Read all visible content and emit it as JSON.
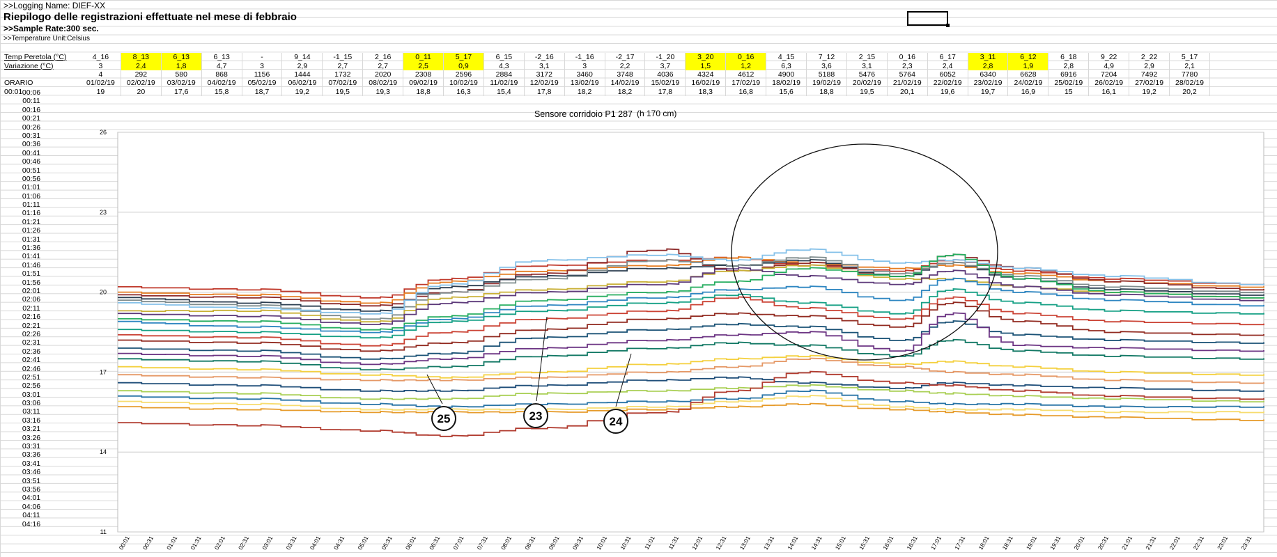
{
  "header": {
    "logging_name": ">>Logging Name: DIEF-XX",
    "title": "Riepilogo delle registrazioni effettuate nel mese di febbraio",
    "sample_rate": ">>Sample Rate:300 sec.",
    "temp_unit": ">>Temperature Unit:Celsius"
  },
  "summary": {
    "row_labels": {
      "ext": "Temp Peretola (°C)",
      "var": "Variazione (°C)",
      "num": "",
      "date": "ORARIO",
      "first": "00:01"
    },
    "ext": [
      "4_16",
      "8_13",
      "6_13",
      "6_13",
      "-",
      "9_14",
      "-1_15",
      "2_16",
      "0_11",
      "5_17",
      "6_15",
      "-2_16",
      "-1_16",
      "-2_17",
      "-1_20",
      "3_20",
      "0_16",
      "4_15",
      "7_12",
      "2_15",
      "0_16",
      "6_17",
      "3_11",
      "6_12",
      "6_18",
      "9_22",
      "2_22",
      "5_17"
    ],
    "var": [
      "3",
      "2,4",
      "1,8",
      "4,7",
      "3",
      "2,9",
      "2,7",
      "2,7",
      "2,5",
      "0,9",
      "4,3",
      "3,1",
      "3",
      "2,2",
      "3,7",
      "1,5",
      "1,2",
      "6,3",
      "3,6",
      "3,1",
      "2,3",
      "2,4",
      "2,8",
      "1,9",
      "2,8",
      "4,9",
      "2,9",
      "2,1"
    ],
    "num": [
      "4",
      "292",
      "580",
      "868",
      "1156",
      "1444",
      "1732",
      "2020",
      "2308",
      "2596",
      "2884",
      "3172",
      "3460",
      "3748",
      "4036",
      "4324",
      "4612",
      "4900",
      "5188",
      "5476",
      "5764",
      "6052",
      "6340",
      "6628",
      "6916",
      "7204",
      "7492",
      "7780"
    ],
    "dates": [
      "01/02/19",
      "02/02/19",
      "03/02/19",
      "04/02/19",
      "05/02/19",
      "06/02/19",
      "07/02/19",
      "08/02/19",
      "09/02/19",
      "10/02/19",
      "11/02/19",
      "12/02/19",
      "13/02/19",
      "14/02/19",
      "15/02/19",
      "16/02/19",
      "17/02/19",
      "18/02/19",
      "19/02/19",
      "20/02/19",
      "21/02/19",
      "22/02/19",
      "23/02/19",
      "24/02/19",
      "25/02/19",
      "26/02/19",
      "27/02/19",
      "28/02/19"
    ],
    "first": [
      "19",
      "20",
      "17,6",
      "15,8",
      "18,7",
      "19,2",
      "19,5",
      "19,3",
      "18,8",
      "16,3",
      "15,4",
      "17,8",
      "18,2",
      "18,2",
      "17,8",
      "18,3",
      "16,8",
      "15,6",
      "18,8",
      "19,5",
      "20,1",
      "19,6",
      "19,7",
      "16,9",
      "15",
      "16,1",
      "19,2",
      "20,2"
    ],
    "highlight": [
      false,
      true,
      true,
      false,
      false,
      false,
      false,
      false,
      true,
      true,
      false,
      false,
      false,
      false,
      false,
      true,
      true,
      false,
      false,
      false,
      false,
      false,
      true,
      true,
      false,
      false,
      false,
      false
    ]
  },
  "times": [
    "00:06",
    "00:11",
    "00:16",
    "00:21",
    "00:26",
    "00:31",
    "00:36",
    "00:41",
    "00:46",
    "00:51",
    "00:56",
    "01:01",
    "01:06",
    "01:11",
    "01:16",
    "01:21",
    "01:26",
    "01:31",
    "01:36",
    "01:41",
    "01:46",
    "01:51",
    "01:56",
    "02:01",
    "02:06",
    "02:11",
    "02:16",
    "02:21",
    "02:26",
    "02:31",
    "02:36",
    "02:41",
    "02:46",
    "02:51",
    "02:56",
    "03:01",
    "03:06",
    "03:11",
    "03:16",
    "03:21",
    "03:26",
    "03:31",
    "03:36",
    "03:41",
    "03:46",
    "03:51",
    "03:56",
    "04:01",
    "04:06",
    "04:11",
    "04:16"
  ],
  "chart_data": {
    "type": "line",
    "title": "Sensore corridoio P1 287",
    "subtitle": "(h 170 cm)",
    "ylim": [
      11,
      26
    ],
    "yticks": [
      "26",
      "23",
      "20",
      "17",
      "14",
      "11"
    ],
    "xticks": [
      "00:01",
      "00:31",
      "01:01",
      "01:31",
      "02:01",
      "02:31",
      "03:01",
      "03:31",
      "04:01",
      "04:31",
      "05:01",
      "05:31",
      "06:01",
      "06:31",
      "07:01",
      "07:31",
      "08:01",
      "08:31",
      "09:01",
      "09:31",
      "10:01",
      "10:31",
      "11:01",
      "11:31",
      "12:01",
      "12:31",
      "13:01",
      "13:31",
      "14:01",
      "14:31",
      "15:01",
      "15:31",
      "16:01",
      "16:31",
      "17:01",
      "17:31",
      "18:01",
      "18:31",
      "19:01",
      "19:31",
      "20:01",
      "20:31",
      "21:01",
      "21:31",
      "22:01",
      "22:31",
      "23:01",
      "23:31"
    ],
    "grid": true,
    "x_hours": [
      0,
      3,
      5.5,
      7,
      9,
      11.5,
      13,
      14.5,
      16.5,
      17.5,
      19,
      21,
      24
    ],
    "series": [
      {
        "color": "#c0392b",
        "values": [
          20.2,
          20.1,
          19.8,
          20.5,
          21.0,
          21.2,
          21.3,
          21.0,
          20.8,
          21.2,
          20.8,
          20.5,
          20.3
        ]
      },
      {
        "color": "#e67e22",
        "values": [
          20.0,
          19.9,
          19.6,
          20.4,
          20.8,
          21.0,
          21.3,
          21.1,
          20.9,
          21.0,
          20.7,
          20.4,
          20.2
        ]
      },
      {
        "color": "#8e2b2b",
        "values": [
          19.9,
          19.8,
          19.5,
          20.0,
          20.7,
          21.6,
          20.8,
          21.1,
          20.6,
          21.4,
          20.9,
          20.4,
          20.1
        ]
      },
      {
        "color": "#2c3e50",
        "values": [
          19.8,
          19.6,
          19.3,
          20.2,
          20.6,
          20.9,
          21.0,
          21.2,
          20.6,
          21.1,
          20.5,
          20.1,
          19.9
        ]
      },
      {
        "color": "#7f8c8d",
        "values": [
          19.7,
          19.5,
          19.0,
          20.0,
          20.5,
          21.2,
          21.0,
          21.3,
          20.7,
          21.1,
          20.6,
          20.2,
          20.0
        ]
      },
      {
        "color": "#85c1e9",
        "values": [
          19.6,
          19.4,
          19.2,
          20.3,
          21.2,
          21.4,
          21.2,
          21.6,
          21.1,
          21.2,
          20.9,
          20.6,
          20.3
        ]
      },
      {
        "color": "#c9b037",
        "values": [
          19.3,
          19.3,
          18.9,
          19.8,
          20.1,
          20.4,
          20.8,
          21.0,
          20.5,
          20.5,
          20.2,
          20.0,
          19.8
        ]
      },
      {
        "color": "#5d3a7a",
        "values": [
          19.2,
          19.1,
          18.8,
          19.6,
          20.0,
          20.3,
          20.9,
          20.6,
          20.3,
          20.8,
          20.2,
          19.9,
          19.7
        ]
      },
      {
        "color": "#27ae60",
        "values": [
          19.0,
          18.9,
          18.6,
          19.1,
          19.7,
          20.0,
          20.4,
          20.9,
          20.6,
          21.4,
          20.5,
          20.0,
          19.8
        ]
      },
      {
        "color": "#2e86c1",
        "values": [
          18.9,
          18.7,
          18.5,
          19.0,
          19.5,
          19.8,
          20.1,
          20.2,
          19.7,
          20.5,
          20.0,
          19.7,
          19.5
        ]
      },
      {
        "color": "#16a085",
        "values": [
          18.6,
          18.5,
          18.3,
          18.9,
          19.3,
          19.6,
          19.9,
          19.6,
          19.2,
          20.1,
          19.6,
          19.3,
          19.2
        ]
      },
      {
        "color": "#cb4335",
        "values": [
          18.4,
          18.3,
          18.0,
          18.5,
          19.0,
          19.3,
          19.8,
          19.4,
          19.0,
          19.8,
          19.2,
          18.9,
          18.8
        ]
      },
      {
        "color": "#922b21",
        "values": [
          18.2,
          18.1,
          17.8,
          18.1,
          18.6,
          19.0,
          19.2,
          19.1,
          18.7,
          19.6,
          18.9,
          18.5,
          18.4
        ]
      },
      {
        "color": "#1a5276",
        "values": [
          17.9,
          17.8,
          17.5,
          17.7,
          18.3,
          18.6,
          18.8,
          18.7,
          18.2,
          18.9,
          18.4,
          18.2,
          18.1
        ]
      },
      {
        "color": "#6c3483",
        "values": [
          17.7,
          17.6,
          17.3,
          17.5,
          17.9,
          18.2,
          18.4,
          18.5,
          17.8,
          19.2,
          18.0,
          17.9,
          17.8
        ]
      },
      {
        "color": "#117864",
        "values": [
          17.5,
          17.4,
          17.1,
          17.2,
          17.6,
          17.9,
          18.1,
          18.0,
          17.6,
          18.2,
          17.8,
          17.6,
          17.5
        ]
      },
      {
        "color": "#f4d03f",
        "values": [
          17.2,
          17.1,
          16.9,
          16.8,
          17.0,
          17.3,
          17.5,
          17.6,
          17.3,
          17.4,
          17.2,
          17.0,
          16.9
        ]
      },
      {
        "color": "#e59866",
        "values": [
          16.9,
          16.8,
          16.7,
          16.7,
          16.8,
          17.0,
          17.2,
          17.5,
          17.2,
          17.0,
          16.9,
          16.7,
          16.6
        ]
      },
      {
        "color": "#1f4e79",
        "values": [
          16.6,
          16.5,
          16.3,
          16.3,
          16.5,
          16.7,
          16.8,
          16.6,
          16.4,
          16.6,
          16.5,
          16.4,
          16.3
        ]
      },
      {
        "color": "#a9cf54",
        "values": [
          16.3,
          16.2,
          16.0,
          16.0,
          16.2,
          16.3,
          16.4,
          16.5,
          16.3,
          16.2,
          16.1,
          16.0,
          15.9
        ]
      },
      {
        "color": "#2874a6",
        "values": [
          16.1,
          16.0,
          15.8,
          15.7,
          15.8,
          15.9,
          16.0,
          16.3,
          15.9,
          15.8,
          15.8,
          15.7,
          15.7
        ]
      },
      {
        "color": "#f7dc6f",
        "values": [
          15.9,
          15.8,
          15.6,
          15.6,
          15.6,
          15.7,
          15.9,
          16.1,
          15.7,
          15.6,
          15.6,
          15.5,
          15.5
        ]
      },
      {
        "color": "#e69b2b",
        "values": [
          15.7,
          15.6,
          15.5,
          15.5,
          15.5,
          15.6,
          15.7,
          15.8,
          15.6,
          15.5,
          15.4,
          15.3,
          15.2
        ]
      },
      {
        "color": "#b03a2e",
        "values": [
          15.1,
          15.0,
          14.8,
          14.6,
          14.9,
          15.5,
          16.3,
          17.0,
          16.6,
          16.5,
          16.3,
          16.1,
          16.0
        ]
      }
    ],
    "annotations": [
      {
        "label": "25"
      },
      {
        "label": "23"
      },
      {
        "label": "24"
      }
    ]
  }
}
